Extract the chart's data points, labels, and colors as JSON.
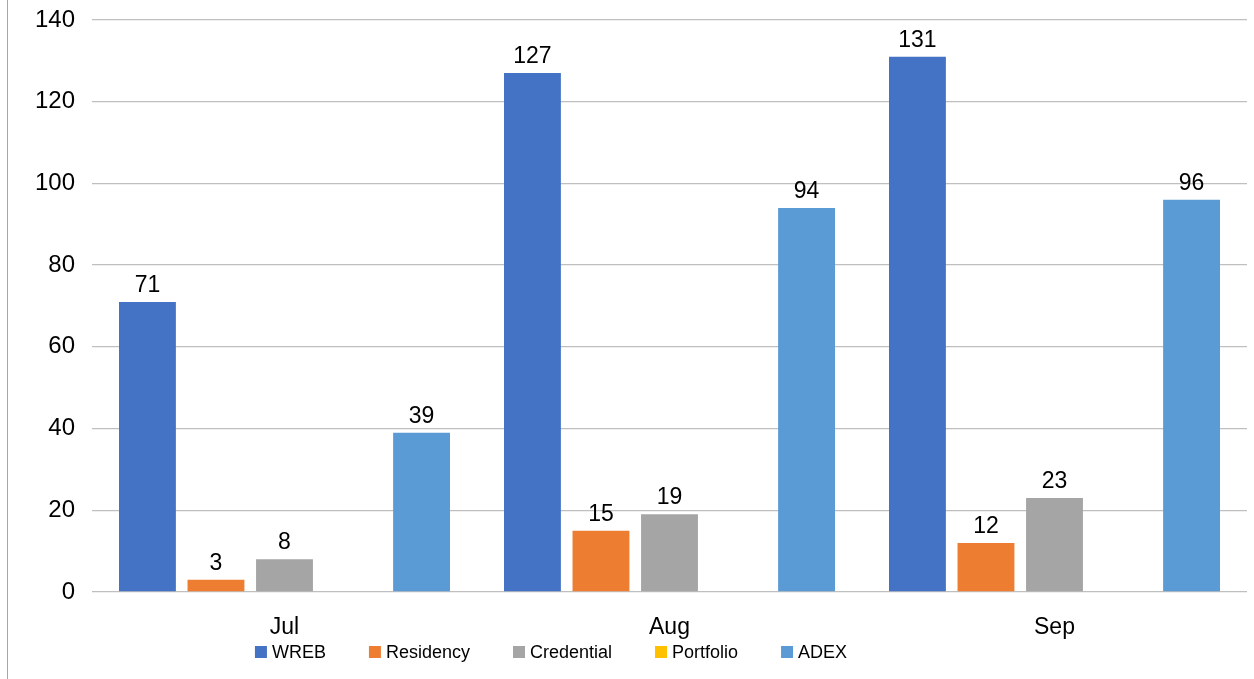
{
  "chart_data": {
    "type": "bar",
    "categories": [
      "Jul",
      "Aug",
      "Sep"
    ],
    "series": [
      {
        "name": "WREB",
        "color": "#4472c4",
        "values": [
          71,
          127,
          131
        ]
      },
      {
        "name": "Residency",
        "color": "#ed7d31",
        "values": [
          3,
          15,
          12
        ]
      },
      {
        "name": "Credential",
        "color": "#a5a5a5",
        "values": [
          8,
          19,
          23
        ]
      },
      {
        "name": "Portfolio",
        "color": "#ffc000",
        "values": [
          null,
          null,
          null
        ]
      },
      {
        "name": "ADEX",
        "color": "#5b9bd5",
        "values": [
          39,
          94,
          96
        ]
      }
    ],
    "ylim": [
      0,
      140
    ],
    "yticks": [
      0,
      20,
      40,
      60,
      80,
      100,
      120,
      140
    ],
    "grid": "y",
    "legend": "bottom",
    "data_labels": true
  }
}
